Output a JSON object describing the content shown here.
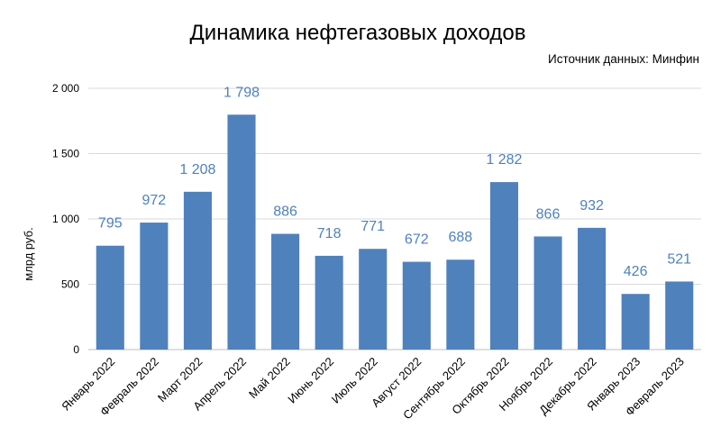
{
  "chart_data": {
    "type": "bar",
    "title": "Динамика нефтегазовых доходов",
    "source": "Источник данных: Минфин",
    "xlabel": "",
    "ylabel": "млрд руб.",
    "ylim": [
      0,
      2000
    ],
    "yticks": [
      0,
      500,
      1000,
      1500,
      2000
    ],
    "ytick_labels": [
      "0",
      "500",
      "1 000",
      "1 500",
      "2 000"
    ],
    "categories": [
      "Январь 2022",
      "Февраль 2022",
      "Март 2022",
      "Апрель 2022",
      "Май 2022",
      "Июнь 2022",
      "Июль 2022",
      "Август 2022",
      "Сентябрь 2022",
      "Октябрь 2022",
      "Ноябрь 2022",
      "Декабрь 2022",
      "Январь 2023",
      "Февраль 2023"
    ],
    "values": [
      795,
      972,
      1208,
      1798,
      886,
      718,
      771,
      672,
      688,
      1282,
      866,
      932,
      426,
      521
    ],
    "data_labels": [
      "795",
      "972",
      "1 208",
      "1 798",
      "886",
      "718",
      "771",
      "672",
      "688",
      "1 282",
      "866",
      "932",
      "426",
      "521"
    ],
    "grid": true,
    "legend": "none",
    "bar_color": "#4f81bd",
    "label_color": "#4f81bd"
  }
}
